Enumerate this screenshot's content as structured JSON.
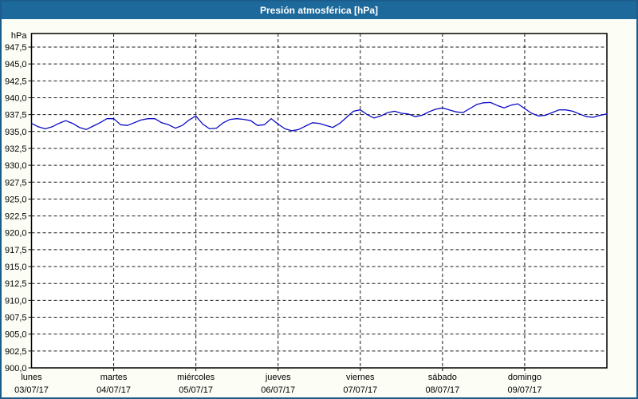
{
  "window": {
    "title": "Presión atmosférica [hPa]",
    "titlebar_color": "#1e699c",
    "border_color": "#1a5d8d",
    "background_color": "#fcfdf5"
  },
  "chart_data": {
    "type": "line",
    "title": "Presión atmosférica [hPa]",
    "y_unit": "hPa",
    "ylim": [
      900,
      949.5
    ],
    "x_range_hours": [
      0,
      168
    ],
    "grid": "dashed",
    "legend": "none",
    "plot_bg": "#ffffff",
    "grid_color": "#1a1a1a",
    "axis_color": "#000000",
    "y_ticks": [
      {
        "value": 947.5,
        "label": "947,5"
      },
      {
        "value": 945.0,
        "label": "945,0"
      },
      {
        "value": 942.5,
        "label": "942,5"
      },
      {
        "value": 940.0,
        "label": "940,0"
      },
      {
        "value": 937.5,
        "label": "937,5"
      },
      {
        "value": 935.0,
        "label": "935,0"
      },
      {
        "value": 932.5,
        "label": "932,5"
      },
      {
        "value": 930.0,
        "label": "930,0"
      },
      {
        "value": 927.5,
        "label": "927,5"
      },
      {
        "value": 925.0,
        "label": "925,0"
      },
      {
        "value": 922.5,
        "label": "922,5"
      },
      {
        "value": 920.0,
        "label": "920,0"
      },
      {
        "value": 917.5,
        "label": "917,5"
      },
      {
        "value": 915.0,
        "label": "915,0"
      },
      {
        "value": 912.5,
        "label": "912,5"
      },
      {
        "value": 910.0,
        "label": "910,0"
      },
      {
        "value": 907.5,
        "label": "907,5"
      },
      {
        "value": 905.0,
        "label": "905,0"
      },
      {
        "value": 902.5,
        "label": "902,5"
      },
      {
        "value": 900.0,
        "label": "900,0"
      }
    ],
    "days": [
      {
        "name": "lunes",
        "date": "03/07/17"
      },
      {
        "name": "martes",
        "date": "04/07/17"
      },
      {
        "name": "miércoles",
        "date": "05/07/17"
      },
      {
        "name": "jueves",
        "date": "06/07/17"
      },
      {
        "name": "viernes",
        "date": "07/07/17"
      },
      {
        "name": "sábado",
        "date": "08/07/17"
      },
      {
        "name": "domingo",
        "date": "09/07/17"
      }
    ],
    "series": [
      {
        "name": "Presión atmosférica",
        "color": "#0b0bc4",
        "start_hour": 0,
        "step_hours": 2,
        "values": [
          936.2,
          935.7,
          935.4,
          935.7,
          936.2,
          936.6,
          936.2,
          935.6,
          935.3,
          935.8,
          936.3,
          936.9,
          936.9,
          936.0,
          935.9,
          936.3,
          936.7,
          936.9,
          936.9,
          936.3,
          936.0,
          935.5,
          935.9,
          936.7,
          937.3,
          936.1,
          935.4,
          935.5,
          936.3,
          936.8,
          936.9,
          936.8,
          936.6,
          935.9,
          936.0,
          936.9,
          936.1,
          935.4,
          935.1,
          935.3,
          935.8,
          936.3,
          936.2,
          935.9,
          935.6,
          936.2,
          937.1,
          938.0,
          938.2,
          937.5,
          937.0,
          937.3,
          937.8,
          938.0,
          937.7,
          937.6,
          937.2,
          937.4,
          937.9,
          938.3,
          938.5,
          938.2,
          937.9,
          937.8,
          938.4,
          939.0,
          939.25,
          939.3,
          938.85,
          938.5,
          938.9,
          939.1,
          938.4,
          937.7,
          937.3,
          937.4,
          937.8,
          938.2,
          938.2,
          938.0,
          937.6,
          937.2,
          937.1,
          937.4,
          937.6
        ]
      }
    ]
  }
}
